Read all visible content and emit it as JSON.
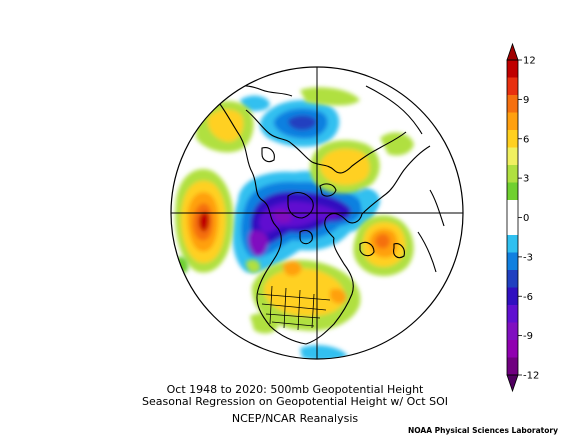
{
  "caption": {
    "line1": "Oct 1948 to 2020: 500mb Geopotential Height",
    "line2": "Seasonal Regression on Geopotential Height  w/ Oct SOI",
    "line3": "NCEP/NCAR Reanalysis"
  },
  "credit": "NOAA Physical Sciences Laboratory",
  "colorbar": {
    "ticks": [
      "12",
      "9",
      "6",
      "3",
      "0",
      "-3",
      "-6",
      "-9",
      "-12"
    ],
    "colors": [
      "#c00000",
      "#e83010",
      "#f57010",
      "#ffa010",
      "#ffd020",
      "#f0f060",
      "#b0e040",
      "#70d030",
      "#ffffff",
      "#ffffff",
      "#30c0f0",
      "#1080e0",
      "#2040c0",
      "#3010c0",
      "#6010d0",
      "#8010c0",
      "#9000b0",
      "#700080"
    ]
  },
  "map_features": [
    "land-outlines",
    "latitude-longitude-crosshair",
    "regression-shading"
  ]
}
